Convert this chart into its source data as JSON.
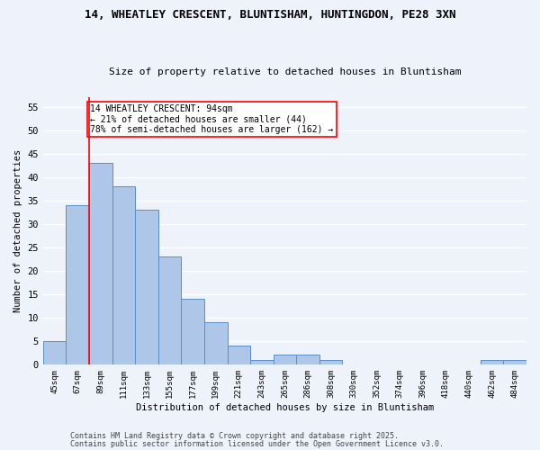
{
  "title1": "14, WHEATLEY CRESCENT, BLUNTISHAM, HUNTINGDON, PE28 3XN",
  "title2": "Size of property relative to detached houses in Bluntisham",
  "xlabel": "Distribution of detached houses by size in Bluntisham",
  "ylabel": "Number of detached properties",
  "bar_labels": [
    "45sqm",
    "67sqm",
    "89sqm",
    "111sqm",
    "133sqm",
    "155sqm",
    "177sqm",
    "199sqm",
    "221sqm",
    "243sqm",
    "265sqm",
    "286sqm",
    "308sqm",
    "330sqm",
    "352sqm",
    "374sqm",
    "396sqm",
    "418sqm",
    "440sqm",
    "462sqm",
    "484sqm"
  ],
  "bar_values": [
    5,
    34,
    43,
    38,
    33,
    23,
    14,
    9,
    4,
    1,
    2,
    2,
    1,
    0,
    0,
    0,
    0,
    0,
    0,
    1,
    1
  ],
  "bar_color": "#aec6e8",
  "bar_edge_color": "#5a8fc4",
  "vline_x": 1.5,
  "vline_color": "red",
  "annotation_text": "14 WHEATLEY CRESCENT: 94sqm\n← 21% of detached houses are smaller (44)\n78% of semi-detached houses are larger (162) →",
  "annotation_box_color": "white",
  "annotation_box_edge_color": "red",
  "ylim": [
    0,
    57
  ],
  "yticks": [
    0,
    5,
    10,
    15,
    20,
    25,
    30,
    35,
    40,
    45,
    50,
    55
  ],
  "footnote1": "Contains HM Land Registry data © Crown copyright and database right 2025.",
  "footnote2": "Contains public sector information licensed under the Open Government Licence v3.0.",
  "bg_color": "#eef2fa",
  "grid_color": "white"
}
